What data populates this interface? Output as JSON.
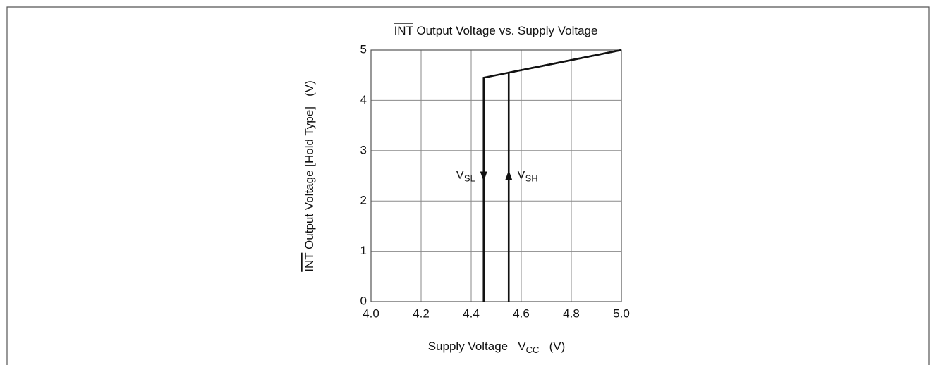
{
  "chart_data": {
    "type": "line",
    "title": {
      "overline": "INT",
      "text": " Output Voltage vs. Supply Voltage"
    },
    "ylabel": {
      "overline": "INT",
      "text": " Output Voltage [Hold Type]   (V)"
    },
    "xlabel": {
      "text": "Supply Voltage   V",
      "sub": "CC",
      "after": "   (V)"
    },
    "xlim": [
      4.0,
      5.0
    ],
    "xticks": [
      {
        "value": 4.0,
        "label": "4.0"
      },
      4.2,
      4.4,
      4.6,
      4.8,
      {
        "value": 5.0,
        "label": "5.0"
      }
    ],
    "ylim": [
      0,
      5
    ],
    "yticks": [
      0,
      1,
      2,
      3,
      4,
      5
    ],
    "grid": true,
    "series": [
      {
        "name": "VSL",
        "color": "#111111",
        "x": [
          5.0,
          4.45,
          4.45
        ],
        "values": [
          5.0,
          4.45,
          0
        ]
      },
      {
        "name": "VSH",
        "color": "#111111",
        "x": [
          4.55,
          4.55,
          5.0
        ],
        "values": [
          0,
          4.55,
          5.0
        ]
      }
    ],
    "annotations": [
      {
        "text": "V",
        "sub": "SL",
        "x": 4.45,
        "y": 2.5,
        "direction": "down",
        "side": "left"
      },
      {
        "text": "V",
        "sub": "SH",
        "x": 4.55,
        "y": 2.5,
        "direction": "up",
        "side": "right"
      }
    ]
  }
}
